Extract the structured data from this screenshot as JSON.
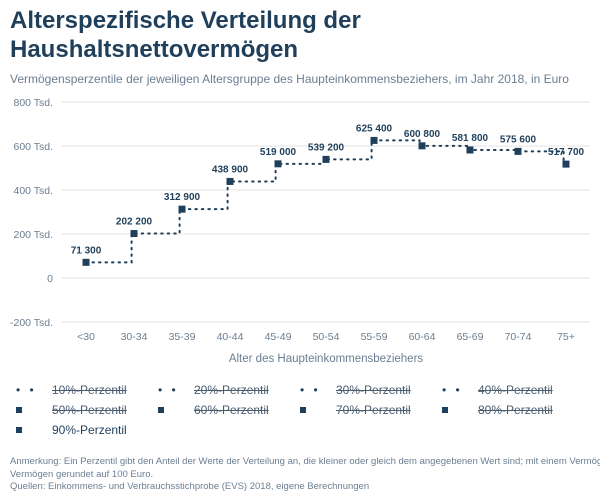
{
  "header": {
    "title_line1": "Alterspezifische Verteilung der",
    "title_line2": "Haushaltsnettovermögen",
    "subtitle": "Vermögensperzentile der jeweiligen Altersgruppe des Haupteinkommensbeziehers, im Jahr 2018, in Euro"
  },
  "chart_data": {
    "type": "line",
    "title": "Alterspezifische Verteilung der Haushaltsnettovermögen",
    "subtitle": "Vermögensperzentile der jeweiligen Altersgruppe des Haupteinkommensbeziehers, im Jahr 2018, in Euro",
    "xlabel": "Alter des Haupteinkommensbeziehers",
    "ylabel": "",
    "categories": [
      "<30",
      "30-34",
      "35-39",
      "40-44",
      "45-49",
      "50-54",
      "55-59",
      "60-64",
      "65-69",
      "70-74",
      "75+"
    ],
    "ylim": [
      -200000,
      800000
    ],
    "yticks": [
      -200000,
      0,
      200000,
      400000,
      600000,
      800000
    ],
    "ytick_labels": [
      "-200 Tsd.",
      "0",
      "200 Tsd.",
      "400 Tsd.",
      "600 Tsd.",
      "800 Tsd."
    ],
    "grid": true,
    "legend_position": "bottom",
    "series": [
      {
        "name": "90%-Perzentil",
        "visible": true,
        "values": [
          71300,
          202200,
          312900,
          438900,
          519000,
          539200,
          625400,
          600800,
          581800,
          575600,
          517700
        ],
        "labels": [
          "71 300",
          "202 200",
          "312 900",
          "438 900",
          "519 000",
          "539 200",
          "625 400",
          "600 800",
          "581 800",
          "575 600",
          "517 700"
        ]
      }
    ]
  },
  "legend": {
    "items": [
      {
        "label": "10%-Perzentil",
        "marker": "dots",
        "state": "disabled"
      },
      {
        "label": "20%-Perzentil",
        "marker": "dots",
        "state": "disabled"
      },
      {
        "label": "30%-Perzentil",
        "marker": "dots",
        "state": "disabled"
      },
      {
        "label": "40%-Perzentil",
        "marker": "dots",
        "state": "disabled"
      },
      {
        "label": "50%-Perzentil",
        "marker": "square",
        "state": "disabled"
      },
      {
        "label": "60%-Perzentil",
        "marker": "square",
        "state": "disabled"
      },
      {
        "label": "70%-Perzentil",
        "marker": "square",
        "state": "disabled"
      },
      {
        "label": "80%-Perzentil",
        "marker": "square",
        "state": "disabled"
      },
      {
        "label": "90%-Perzentil",
        "marker": "square",
        "state": "enabled"
      }
    ]
  },
  "footnotes": {
    "note": "Anmerkung: Ein Perzentil gibt den Anteil der Werte der Verteilung an, die kleiner oder gleich dem angegebenen Wert sind; mit einem Vermögen",
    "note2": "Vermögen gerundet auf 100 Euro.",
    "source": "Quellen: Einkommens- und Verbrauchsstichprobe (EVS) 2018, eigene Berechnungen"
  },
  "colors": {
    "primary": "#1f3f5b",
    "muted_text": "#6b7e92",
    "grid": "#e3e3e3"
  }
}
